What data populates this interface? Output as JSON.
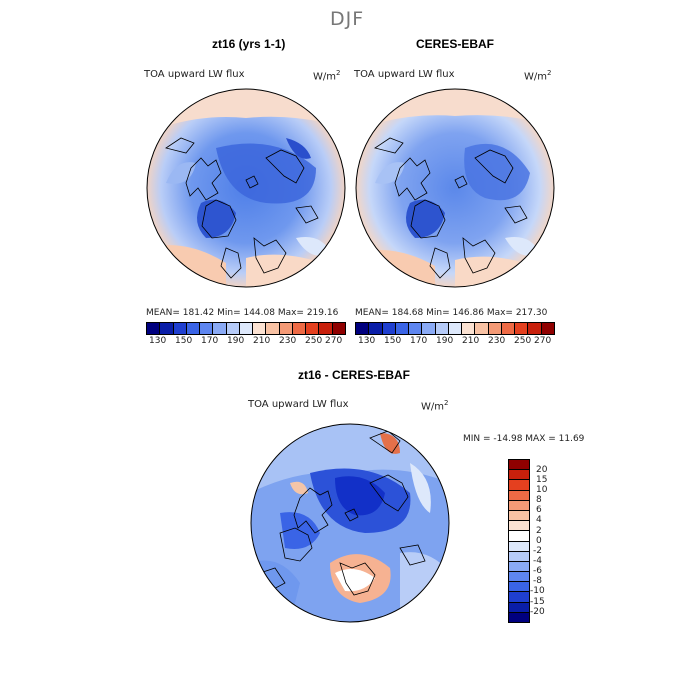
{
  "figure": {
    "season": "DJF"
  },
  "panels": [
    {
      "title": "zt16 (yrs 1-1)",
      "variable": "TOA upward LW flux",
      "units": "W/m",
      "units_exp": "2",
      "stats": "MEAN= 181.42   Min= 144.08   Max= 219.16"
    },
    {
      "title": "CERES-EBAF",
      "variable": "TOA upward LW flux",
      "units": "W/m",
      "units_exp": "2",
      "stats": "MEAN= 184.68   Min= 146.86   Max= 217.30"
    }
  ],
  "diff_panel": {
    "title": "zt16 - CERES-EBAF",
    "variable": "TOA upward LW flux",
    "units": "W/m",
    "units_exp": "2",
    "stats": "MIN = -14.98 MAX =  11.69"
  },
  "colorbar_main": {
    "tick_labels": [
      "130",
      "150",
      "170",
      "190",
      "210",
      "230",
      "250",
      "270"
    ],
    "colors": [
      "#00007f",
      "#0a1ea8",
      "#1f3fd0",
      "#3a64e6",
      "#5e86f0",
      "#8aaaf5",
      "#b6cbf8",
      "#dde8fb",
      "#fbe2d2",
      "#f8c2a4",
      "#f49a76",
      "#ee6a45",
      "#e4401f",
      "#c8200c",
      "#8f0000"
    ]
  },
  "colorbar_diff": {
    "tick_labels": [
      "20",
      "15",
      "10",
      "8",
      "6",
      "4",
      "2",
      "0",
      "-2",
      "-4",
      "-6",
      "-8",
      "-10",
      "-15",
      "-20"
    ],
    "colors": [
      "#8f0000",
      "#c8200c",
      "#e4401f",
      "#ee6a45",
      "#f49a76",
      "#f8c2a4",
      "#fbe2d2",
      "#ffffff",
      "#dde8fb",
      "#b6cbf8",
      "#8aaaf5",
      "#5e86f0",
      "#3a64e6",
      "#1f3fd0",
      "#0a1ea8",
      "#00007f"
    ]
  }
}
